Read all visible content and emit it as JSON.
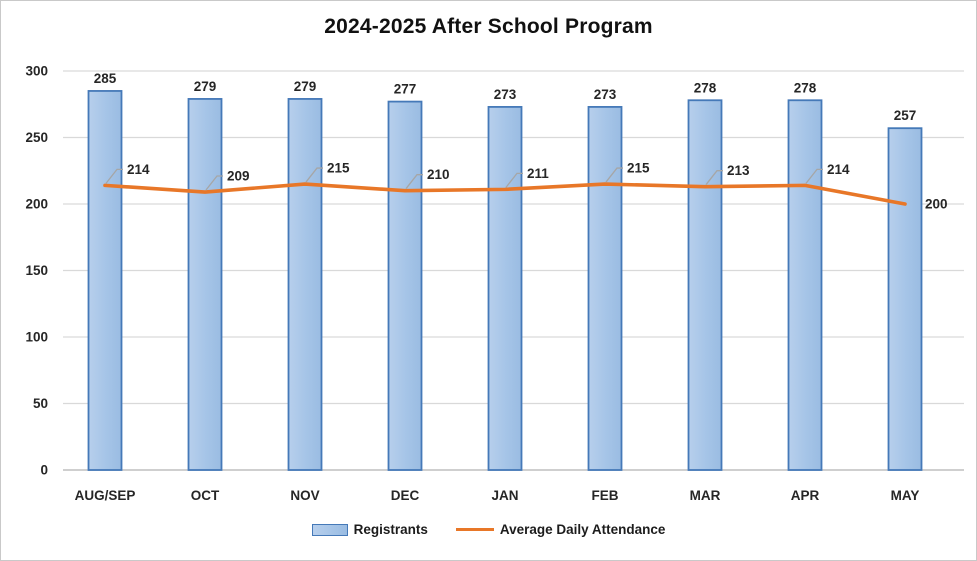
{
  "chart_data": {
    "type": "combo",
    "title": "2024-2025 After School Program",
    "categories": [
      "AUG/SEP",
      "OCT",
      "NOV",
      "DEC",
      "JAN",
      "FEB",
      "MAR",
      "APR",
      "MAY"
    ],
    "series": [
      {
        "name": "Registrants",
        "type": "bar",
        "values": [
          285,
          279,
          279,
          277,
          273,
          273,
          278,
          278,
          257
        ]
      },
      {
        "name": "Average Daily Attendance",
        "type": "line",
        "values": [
          214,
          209,
          215,
          210,
          211,
          215,
          213,
          214,
          200
        ]
      }
    ],
    "y_axis": {
      "min": 0,
      "max": 300,
      "step": 50,
      "tick_labels": [
        "0",
        "50",
        "100",
        "150",
        "200",
        "250",
        "300"
      ]
    },
    "grid": true,
    "data_labels": true,
    "legend_position": "bottom",
    "colors": {
      "bar_fill": "#a5c4e7",
      "bar_fill_light": "#b7cfec",
      "bar_border": "#4579b8",
      "line": "#e87728",
      "gridline": "#d9d9d9",
      "axis_line": "#bfbfbf",
      "text": "#262626",
      "leader_line": "#a6a6a6"
    }
  }
}
